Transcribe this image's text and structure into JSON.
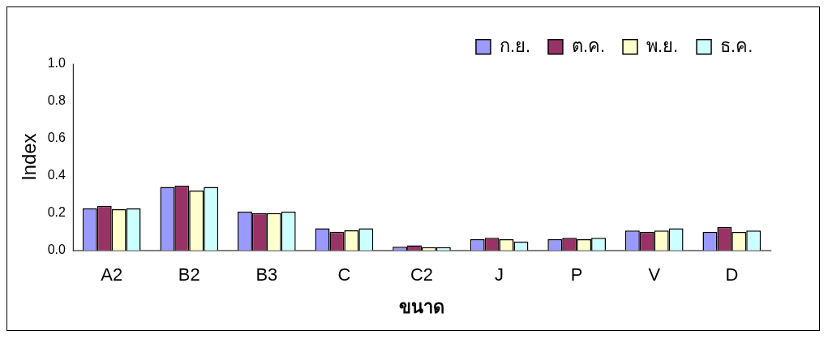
{
  "chart_data": {
    "type": "bar",
    "xlabel": "ขนาด",
    "ylabel": "Index",
    "categories": [
      "A2",
      "B2",
      "B3",
      "C",
      "C2",
      "J",
      "P",
      "V",
      "D"
    ],
    "series": [
      {
        "name": "ก.ย.",
        "color": "#9999ff",
        "values": [
          0.225,
          0.34,
          0.207,
          0.118,
          0.019,
          0.059,
          0.059,
          0.106,
          0.099
        ]
      },
      {
        "name": "ต.ค.",
        "color": "#993366",
        "values": [
          0.239,
          0.346,
          0.2,
          0.1,
          0.027,
          0.067,
          0.067,
          0.099,
          0.125
        ]
      },
      {
        "name": "พ.ย.",
        "color": "#ffffcc",
        "values": [
          0.22,
          0.32,
          0.2,
          0.107,
          0.017,
          0.059,
          0.059,
          0.106,
          0.099
        ]
      },
      {
        "name": "ธ.ค.",
        "color": "#ccffff",
        "values": [
          0.225,
          0.34,
          0.207,
          0.118,
          0.017,
          0.046,
          0.067,
          0.118,
          0.106
        ]
      }
    ],
    "ylim": [
      0,
      1
    ],
    "yticks": [
      {
        "value": 0,
        "label": "0.0"
      },
      {
        "value": 0.2,
        "label": "0.2"
      },
      {
        "value": 0.4,
        "label": "0.4"
      },
      {
        "value": 0.6,
        "label": "0.6"
      },
      {
        "value": 0.8,
        "label": "0.8"
      },
      {
        "value": 1,
        "label": "1.0"
      }
    ],
    "grid": false,
    "legend": "top right"
  }
}
